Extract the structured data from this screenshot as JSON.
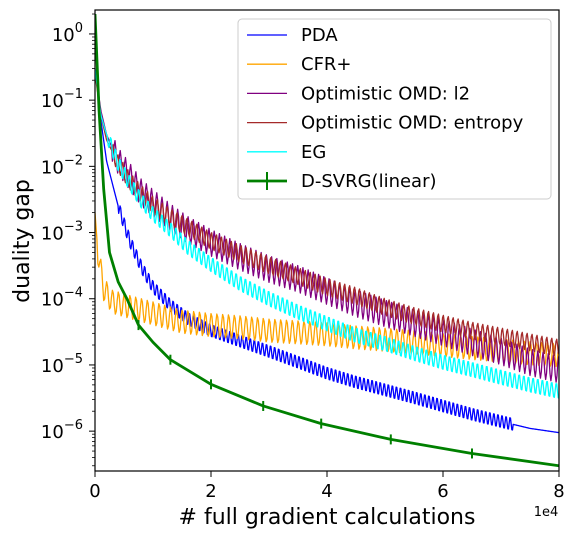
{
  "chart_data": {
    "type": "line",
    "xlabel": "# full gradient calculations",
    "ylabel": "duality gap",
    "x_multiplier_label": "1e4",
    "xlim": [
      0,
      80000
    ],
    "ylim": [
      2.5e-07,
      2.3
    ],
    "yscale": "log",
    "grid": false,
    "legend_position": "top-right",
    "x_ticks": [
      {
        "value": 0,
        "label": "0"
      },
      {
        "value": 20000,
        "label": "2"
      },
      {
        "value": 40000,
        "label": "4"
      },
      {
        "value": 60000,
        "label": "6"
      },
      {
        "value": 80000,
        "label": "8"
      }
    ],
    "y_ticks": [
      {
        "value": 1,
        "base": "10",
        "exp": "0"
      },
      {
        "value": 0.1,
        "base": "10",
        "exp": "−1"
      },
      {
        "value": 0.01,
        "base": "10",
        "exp": "−2"
      },
      {
        "value": 0.001,
        "base": "10",
        "exp": "−3"
      },
      {
        "value": 0.0001,
        "base": "10",
        "exp": "−4"
      },
      {
        "value": 1e-05,
        "base": "10",
        "exp": "−5"
      },
      {
        "value": 1e-06,
        "base": "10",
        "exp": "−6"
      }
    ],
    "series": [
      {
        "name": "PDA",
        "color": "#0000ff",
        "width": 1.3,
        "points": [
          [
            0,
            2.0
          ],
          [
            300,
            0.3
          ],
          [
            1000,
            0.05
          ],
          [
            2000,
            0.012
          ],
          [
            4000,
            0.0025
          ],
          [
            6000,
            0.00075
          ],
          [
            8000,
            0.0003
          ],
          [
            10000,
            0.00015
          ],
          [
            13000,
            8e-05
          ],
          [
            16000,
            5e-05
          ],
          [
            20000,
            3.3e-05
          ],
          [
            25000,
            2.3e-05
          ],
          [
            30000,
            1.6e-05
          ],
          [
            35000,
            1.1e-05
          ],
          [
            40000,
            7.5e-06
          ],
          [
            45000,
            5.5e-06
          ],
          [
            50000,
            4.2e-06
          ],
          [
            55000,
            3.2e-06
          ],
          [
            60000,
            2.4e-06
          ],
          [
            65000,
            1.8e-06
          ],
          [
            70000,
            1.4e-06
          ],
          [
            75000,
            1.1e-06
          ],
          [
            80000,
            9.5e-07
          ]
        ],
        "oscillation": {
          "period": 700,
          "amplitude": 0.1,
          "start": 4000,
          "end": 72000
        }
      },
      {
        "name": "CFR+",
        "color": "#ffa500",
        "width": 1.3,
        "points": [
          [
            0,
            0.002
          ],
          [
            500,
            0.0005
          ],
          [
            1500,
            0.00014
          ],
          [
            3000,
            9e-05
          ],
          [
            6000,
            7.5e-05
          ],
          [
            10000,
            6e-05
          ],
          [
            15000,
            4.5e-05
          ],
          [
            20000,
            4e-05
          ],
          [
            25000,
            3.7e-05
          ],
          [
            30000,
            3.3e-05
          ],
          [
            35000,
            3.1e-05
          ],
          [
            40000,
            2.9e-05
          ],
          [
            45000,
            2.6e-05
          ],
          [
            50000,
            2.4e-05
          ],
          [
            55000,
            2.2e-05
          ],
          [
            60000,
            2e-05
          ],
          [
            65000,
            1.8e-05
          ],
          [
            70000,
            1.65e-05
          ],
          [
            75000,
            1.5e-05
          ],
          [
            80000,
            1.4e-05
          ]
        ],
        "oscillation": {
          "period": 1000,
          "amplitude": 0.18,
          "start": 500,
          "end": 80000
        }
      },
      {
        "name": "Optimistic OMD: l2",
        "color": "#800080",
        "width": 1.3,
        "points": [
          [
            0,
            0.3
          ],
          [
            1000,
            0.07
          ],
          [
            2000,
            0.03
          ],
          [
            4000,
            0.012
          ],
          [
            6000,
            0.007
          ],
          [
            8000,
            0.004
          ],
          [
            10000,
            0.0028
          ],
          [
            13000,
            0.0017
          ],
          [
            16000,
            0.0011
          ],
          [
            20000,
            0.0007
          ],
          [
            25000,
            0.00043
          ],
          [
            30000,
            0.00028
          ],
          [
            35000,
            0.0002
          ],
          [
            40000,
            0.00013
          ],
          [
            45000,
            8.5e-05
          ],
          [
            50000,
            6e-05
          ],
          [
            55000,
            4.3e-05
          ],
          [
            60000,
            3.1e-05
          ],
          [
            65000,
            2.2e-05
          ],
          [
            70000,
            1.6e-05
          ],
          [
            75000,
            1.1e-05
          ],
          [
            80000,
            8.5e-06
          ]
        ],
        "oscillation": {
          "period": 900,
          "amplitude": 0.2,
          "start": 3000,
          "end": 80000
        }
      },
      {
        "name": "Optimistic OMD: entropy",
        "color": "#a52a2a",
        "width": 1.3,
        "points": [
          [
            0,
            0.25
          ],
          [
            1000,
            0.06
          ],
          [
            2000,
            0.025
          ],
          [
            4000,
            0.011
          ],
          [
            6000,
            0.006
          ],
          [
            8000,
            0.0038
          ],
          [
            10000,
            0.0026
          ],
          [
            13000,
            0.0017
          ],
          [
            16000,
            0.0012
          ],
          [
            20000,
            0.00075
          ],
          [
            25000,
            0.00048
          ],
          [
            30000,
            0.00032
          ],
          [
            35000,
            0.00022
          ],
          [
            40000,
            0.00015
          ],
          [
            45000,
            0.00011
          ],
          [
            50000,
            7.5e-05
          ],
          [
            55000,
            5.5e-05
          ],
          [
            60000,
            4.2e-05
          ],
          [
            65000,
            3.3e-05
          ],
          [
            70000,
            2.7e-05
          ],
          [
            75000,
            2.2e-05
          ],
          [
            80000,
            1.8e-05
          ]
        ],
        "oscillation": {
          "period": 850,
          "amplitude": 0.13,
          "start": 3000,
          "end": 80000
        }
      },
      {
        "name": "EG",
        "color": "#00ffff",
        "width": 1.3,
        "points": [
          [
            0,
            0.3
          ],
          [
            1000,
            0.06
          ],
          [
            2000,
            0.03
          ],
          [
            4000,
            0.011
          ],
          [
            6000,
            0.0055
          ],
          [
            8000,
            0.003
          ],
          [
            10000,
            0.0019
          ],
          [
            13000,
            0.0011
          ],
          [
            16000,
            0.0006
          ],
          [
            20000,
            0.00033
          ],
          [
            25000,
            0.00017
          ],
          [
            30000,
            0.0001
          ],
          [
            35000,
            6.3e-05
          ],
          [
            40000,
            4.2e-05
          ],
          [
            45000,
            2.8e-05
          ],
          [
            50000,
            2.1e-05
          ],
          [
            55000,
            1.5e-05
          ],
          [
            60000,
            1.1e-05
          ],
          [
            65000,
            8.5e-06
          ],
          [
            70000,
            6.5e-06
          ],
          [
            75000,
            5e-06
          ],
          [
            80000,
            4e-06
          ]
        ],
        "oscillation": {
          "period": 800,
          "amplitude": 0.12,
          "start": 2000,
          "end": 80000
        }
      },
      {
        "name": "D-SVRG(linear)",
        "color": "#008000",
        "width": 2.8,
        "errorbars": true,
        "points": [
          [
            0,
            2.0
          ],
          [
            700,
            0.07
          ],
          [
            1500,
            0.0045
          ],
          [
            2500,
            0.0005
          ],
          [
            4000,
            0.00018
          ],
          [
            5500,
            0.0001
          ],
          [
            7500,
            4e-05
          ],
          [
            10000,
            2.2e-05
          ],
          [
            13000,
            1.2e-05
          ],
          [
            20000,
            5.1e-06
          ],
          [
            29000,
            2.4e-06
          ],
          [
            39000,
            1.3e-06
          ],
          [
            51000,
            7.5e-07
          ],
          [
            65000,
            4.6e-07
          ],
          [
            80000,
            3e-07
          ]
        ],
        "markers": [
          [
            7500,
            4e-05
          ],
          [
            13000,
            1.2e-05
          ],
          [
            20000,
            5.1e-06
          ],
          [
            29000,
            2.4e-06
          ],
          [
            39000,
            1.3e-06
          ],
          [
            51000,
            7.5e-07
          ],
          [
            65000,
            4.6e-07
          ]
        ]
      }
    ]
  }
}
